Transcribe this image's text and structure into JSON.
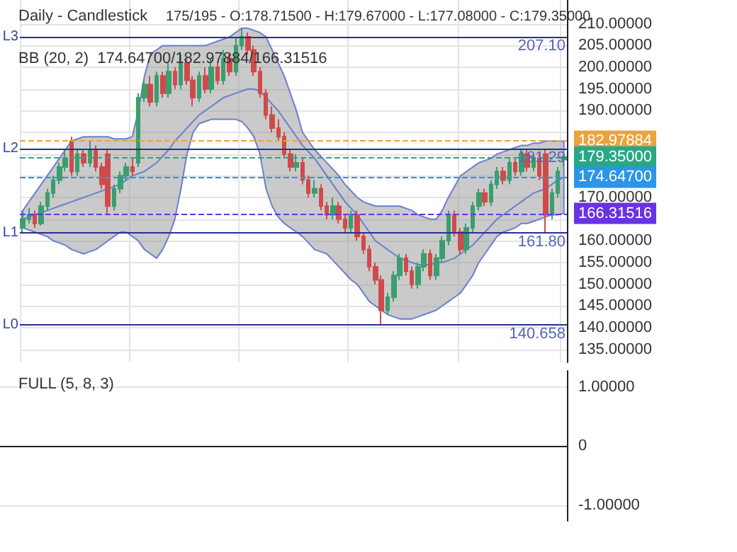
{
  "chart_data": [
    {
      "type": "candlestick",
      "title": "Daily - Candlestick",
      "subtitle": "175/195 - O:178.71500 - H:179.67000 - L:177.08000 - C:179.35000",
      "annotations": [
        "BB (20, 2)  174.64700/182.97884/166.31516",
        {
          "text": "207.10",
          "y": 207.1
        },
        {
          "text": "181.29",
          "y": 181.29
        },
        {
          "text": "161.80",
          "y": 161.8
        },
        {
          "text": "140.658",
          "y": 140.658
        }
      ],
      "categories": [
        null,
        null,
        null,
        null,
        null,
        null,
        null,
        null,
        null,
        null,
        null,
        null,
        null,
        null,
        null,
        null,
        null,
        null,
        null,
        null,
        null,
        null,
        null,
        null,
        null,
        null,
        null,
        null,
        null,
        null,
        null,
        null,
        null,
        null,
        null,
        null,
        null,
        null,
        null,
        null,
        null,
        null,
        null,
        null,
        null,
        null,
        null,
        null,
        null,
        null,
        null,
        null,
        null,
        null,
        null,
        null,
        null,
        null,
        null,
        null,
        null,
        null,
        null,
        null,
        null,
        null,
        null,
        null,
        null,
        null,
        null,
        null,
        null,
        null,
        null,
        null,
        null,
        null,
        null,
        null,
        null,
        null,
        null,
        null,
        null,
        null,
        null,
        null,
        null,
        null
      ],
      "ylim": [
        132,
        215.5
      ],
      "yticks": [
        {
          "value": 135,
          "label": "135.00000"
        },
        {
          "value": 140,
          "label": "140.00000"
        },
        {
          "value": 145,
          "label": "145.00000"
        },
        {
          "value": 150,
          "label": "150.00000"
        },
        {
          "value": 155,
          "label": "155.00000"
        },
        {
          "value": 160,
          "label": "160.00000"
        },
        {
          "value": 165,
          "label": null
        },
        {
          "value": 170,
          "label": "170.00000"
        },
        {
          "value": 175,
          "label": null
        },
        {
          "value": 180,
          "label": null
        },
        {
          "value": 185,
          "label": null
        },
        {
          "value": 190,
          "label": "190.00000"
        },
        {
          "value": 195,
          "label": "195.00000"
        },
        {
          "value": 200,
          "label": "200.00000"
        },
        {
          "value": 205,
          "label": "205.00000"
        },
        {
          "value": 210,
          "label": "210.00000"
        }
      ],
      "grid": true,
      "tick_labels": "y",
      "series": [
        {
          "type": "line",
          "color": "#6a7fd0",
          "values": [
            165,
            165.5,
            166,
            166.5,
            167,
            167.5,
            168,
            168.5,
            169,
            169.5,
            170,
            170.5,
            171,
            171.5,
            172,
            172.5,
            173,
            174,
            175,
            175.5,
            176,
            177,
            178,
            179.5,
            181,
            183,
            184.5,
            186,
            187.5,
            189,
            190,
            191,
            192,
            193,
            193.5,
            194,
            194.5,
            195,
            195,
            194.5,
            193,
            191.5,
            190,
            188,
            186,
            184,
            182,
            180.5,
            179,
            177,
            175,
            173,
            171,
            169,
            167.5,
            166,
            164,
            162,
            160,
            159,
            158,
            157,
            156,
            155.5,
            155,
            154.5,
            154.5,
            154.5,
            155,
            155,
            155.5,
            156,
            157,
            158,
            159,
            160.5,
            162,
            163.5,
            165,
            166,
            167,
            168,
            169,
            170,
            171,
            171.5,
            172,
            173,
            174,
            174.65
          ],
          "upper": [
            167,
            169,
            171,
            173,
            175,
            177,
            179,
            181,
            183,
            183.5,
            184,
            184,
            184,
            184,
            184,
            183.5,
            183.5,
            183.5,
            184,
            190,
            198,
            203,
            204,
            205,
            205,
            205,
            205,
            205,
            205,
            205,
            205,
            205.5,
            206,
            206.5,
            207,
            208,
            209,
            209,
            208.5,
            208,
            207,
            204,
            201,
            198,
            194,
            190,
            185,
            183,
            181,
            179.5,
            178,
            176.5,
            175,
            173,
            171.5,
            170,
            169,
            168.5,
            168,
            168,
            168,
            168,
            168,
            167.5,
            167,
            166,
            165.5,
            165,
            165,
            167,
            170,
            172.5,
            175,
            176,
            177,
            178,
            178.5,
            179,
            180,
            180.5,
            181,
            181.5,
            182,
            182,
            182.5,
            182.5,
            183,
            183,
            183,
            182.98
          ],
          "lower": [
            163,
            162.5,
            162,
            161.5,
            161,
            160,
            159.5,
            159,
            158,
            157.5,
            157,
            157.5,
            158,
            159,
            160,
            161,
            162,
            162,
            161,
            160,
            158,
            157,
            156,
            158,
            161,
            165,
            172,
            180,
            185,
            187,
            187.5,
            188,
            188,
            188,
            188,
            188,
            187.5,
            186,
            184,
            180,
            172,
            168,
            165.5,
            164,
            163,
            162,
            161,
            159.5,
            158,
            157.5,
            157,
            155.5,
            154,
            152.5,
            151,
            150,
            148,
            146,
            145,
            144,
            143,
            142.5,
            142,
            142,
            142,
            142.5,
            143,
            143.5,
            144,
            145,
            146,
            147,
            148,
            150,
            152,
            155,
            157,
            159,
            161,
            162,
            162.5,
            163,
            164,
            164,
            164.5,
            165,
            165.5,
            166,
            166,
            166.32
          ]
        },
        {
          "colors": [
            "#3a9e6e",
            "#3a9e6e",
            "#cf4b4b",
            "#3a9e6e",
            "#3a9e6e",
            "#3a9e6e",
            "#3a9e6e",
            "#3a9e6e",
            "#cf4b4b",
            "#3a9e6e",
            "#cf4b4b",
            "#3a9e6e",
            "#cf4b4b",
            "#cf4b4b",
            "#cf4b4b",
            "#3a9e6e",
            "#3a9e6e",
            "#3a9e6e",
            "#cf4b4b",
            "#3a9e6e",
            "#3a9e6e",
            "#cf4b4b",
            "#3a9e6e",
            "#cf4b4b",
            "#3a9e6e",
            "#cf4b4b",
            "#3a9e6e",
            "#cf4b4b",
            "#cf4b4b",
            "#3a9e6e",
            "#cf4b4b",
            "#3a9e6e",
            "#cf4b4b",
            "#3a9e6e",
            "#cf4b4b",
            "#3a9e6e",
            "#3a9e6e",
            "#cf4b4b",
            "#cf4b4b",
            "#cf4b4b",
            "#cf4b4b",
            "#cf4b4b",
            "#cf4b4b",
            "#cf4b4b",
            "#cf4b4b",
            "#3a9e6e",
            "#cf4b4b",
            "#cf4b4b",
            "#3a9e6e",
            "#cf4b4b",
            "#cf4b4b",
            "#3a9e6e",
            "#cf4b4b",
            "#cf4b4b",
            "#3a9e6e",
            "#cf4b4b",
            "#cf4b4b",
            "#cf4b4b",
            "#cf4b4b",
            "#cf4b4b",
            "#3a9e6e",
            "#3a9e6e",
            "#3a9e6e",
            "#cf4b4b",
            "#cf4b4b",
            "#3a9e6e",
            "#3a9e6e",
            "#cf4b4b",
            "#3a9e6e",
            "#3a9e6e",
            "#3a9e6e",
            "#cf4b4b",
            "#cf4b4b",
            "#3a9e6e",
            "#3a9e6e",
            "#3a9e6e",
            "#cf4b4b",
            "#3a9e6e",
            "#3a9e6e",
            "#cf4b4b",
            "#3a9e6e",
            "#cf4b4b",
            "#3a9e6e",
            "#cf4b4b",
            "#3a9e6e",
            "#cf4b4b",
            "#cf4b4b",
            "#3a9e6e",
            "#3a9e6e",
            "#3a9e6e"
          ],
          "ohlc": [
            [
              163,
              167,
              162,
              165
            ],
            [
              165,
              167.5,
              164,
              166
            ],
            [
              166,
              167,
              163,
              164
            ],
            [
              164,
              169,
              163.5,
              168
            ],
            [
              168,
              172,
              167,
              171
            ],
            [
              171,
              175,
              170,
              174
            ],
            [
              174,
              178,
              173,
              177
            ],
            [
              177,
              181,
              176,
              179
            ],
            [
              183,
              184,
              175,
              176
            ],
            [
              176,
              181,
              175,
              180
            ],
            [
              180,
              181,
              177,
              178
            ],
            [
              178,
              183,
              177,
              181
            ],
            [
              181,
              182,
              176,
              177
            ],
            [
              177,
              178,
              172,
              173
            ],
            [
              180,
              181,
              166,
              168
            ],
            [
              168,
              173,
              167,
              172
            ],
            [
              172,
              176,
              171,
              175
            ],
            [
              175,
              178,
              174,
              177
            ],
            [
              177,
              179,
              175,
              176
            ],
            [
              178,
              194,
              177,
              193
            ],
            [
              193,
              197,
              192,
              196
            ],
            [
              196,
              198,
              191,
              192
            ],
            [
              192,
              199,
              191,
              198
            ],
            [
              198,
              199,
              193,
              194
            ],
            [
              194,
              201,
              193,
              199
            ],
            [
              199,
              200,
              195,
              196
            ],
            [
              196,
              203,
              195,
              201
            ],
            [
              201,
              202,
              196,
              197
            ],
            [
              197,
              198,
              191,
              193
            ],
            [
              193,
              199,
              192,
              198
            ],
            [
              198,
              200,
              194,
              195
            ],
            [
              195,
              202,
              194,
              200
            ],
            [
              200,
              201,
              196,
              197
            ],
            [
              197,
              204,
              196,
              202
            ],
            [
              202,
              203,
              198,
              199
            ],
            [
              199,
              207,
              198,
              205
            ],
            [
              205,
              209,
              204,
              207
            ],
            [
              207,
              208,
              203,
              204
            ],
            [
              204,
              205,
              198,
              199
            ],
            [
              199,
              200,
              193,
              194
            ],
            [
              194,
              195,
              188,
              189
            ],
            [
              189,
              191,
              185,
              186
            ],
            [
              186,
              188,
              183,
              184
            ],
            [
              184,
              185,
              179,
              180
            ],
            [
              180,
              181,
              176,
              177
            ],
            [
              177,
              180,
              176,
              178
            ],
            [
              178,
              179,
              173,
              174
            ],
            [
              174,
              175,
              170,
              171
            ],
            [
              171,
              174,
              170,
              172
            ],
            [
              172,
              173,
              167,
              168
            ],
            [
              168,
              169,
              165,
              166
            ],
            [
              166,
              170,
              165,
              168
            ],
            [
              168,
              169,
              164,
              165
            ],
            [
              165,
              166,
              162,
              163
            ],
            [
              163,
              167,
              162,
              166
            ],
            [
              166,
              167,
              160,
              161
            ],
            [
              161,
              162,
              157,
              158
            ],
            [
              158,
              159,
              153,
              154
            ],
            [
              154,
              155,
              150,
              151
            ],
            [
              151,
              152,
              140.7,
              144
            ],
            [
              144,
              148,
              143,
              147
            ],
            [
              147,
              153,
              146,
              152
            ],
            [
              152,
              157,
              151,
              156
            ],
            [
              156,
              157,
              152,
              153
            ],
            [
              153,
              154,
              149,
              150
            ],
            [
              150,
              155,
              149,
              154
            ],
            [
              154,
              158,
              153,
              157
            ],
            [
              157,
              158,
              151,
              152
            ],
            [
              152,
              157,
              151,
              156
            ],
            [
              156,
              161,
              155,
              160
            ],
            [
              160,
              167,
              159,
              166
            ],
            [
              166,
              167,
              161,
              162
            ],
            [
              162,
              163,
              157,
              158
            ],
            [
              158,
              164,
              157,
              163
            ],
            [
              163,
              169,
              162,
              168
            ],
            [
              168,
              172,
              167,
              171
            ],
            [
              171,
              172,
              168,
              169
            ],
            [
              169,
              174,
              168,
              173
            ],
            [
              173,
              177,
              172,
              176
            ],
            [
              176,
              177,
              173,
              174
            ],
            [
              174,
              179,
              173,
              178
            ],
            [
              178,
              179,
              175,
              176
            ],
            [
              176,
              181,
              175,
              180
            ],
            [
              180,
              181,
              176,
              177
            ],
            [
              177,
              180,
              176,
              179
            ],
            [
              179,
              180,
              174,
              175
            ],
            [
              180,
              181,
              162,
              166
            ],
            [
              166,
              172,
              165,
              171
            ],
            [
              171,
              177,
              170,
              176
            ],
            [
              178.715,
              179.67,
              177.08,
              179.35
            ]
          ]
        }
      ],
      "ref_lines": [
        {
          "axis": "y",
          "value": 207.1,
          "label": "L3",
          "color": "#2b2f8f",
          "line_style": "solid"
        },
        {
          "axis": "y",
          "value": 181.29,
          "label": "L2",
          "color": "#2b2f8f",
          "line_style": "solid"
        },
        {
          "axis": "y",
          "value": 161.8,
          "label": "L1",
          "color": "#2b2f8f",
          "line_style": "solid"
        },
        {
          "axis": "y",
          "value": 140.658,
          "label": "L0",
          "color": "#2b2f8f",
          "line_style": "solid"
        },
        {
          "axis": "y",
          "value": 182.97884,
          "label": "182.97884",
          "color": "#e9a43c",
          "line_style": "dashed"
        },
        {
          "axis": "y",
          "value": 179.35,
          "label": "179.35000",
          "color": "#28a885",
          "line_style": "dashed"
        },
        {
          "axis": "y",
          "value": 174.647,
          "label": "174.64700",
          "color": "#2b95e8",
          "line_style": "dashed"
        },
        {
          "axis": "y",
          "value": 166.31516,
          "label": "166.31516",
          "color": "#6b32e0",
          "line_style": "dashed"
        }
      ]
    },
    {
      "type": "line",
      "title": "FULL (5, 8, 3)",
      "categories": [
        null,
        null
      ],
      "ylim": [
        -1.27,
        1.28
      ],
      "yticks": [
        {
          "value": -1,
          "label": "-1.00000"
        },
        {
          "value": 0,
          "label": "0"
        },
        {
          "value": 1,
          "label": "1.00000"
        }
      ],
      "grid": "y",
      "tick_labels": "y"
    }
  ]
}
